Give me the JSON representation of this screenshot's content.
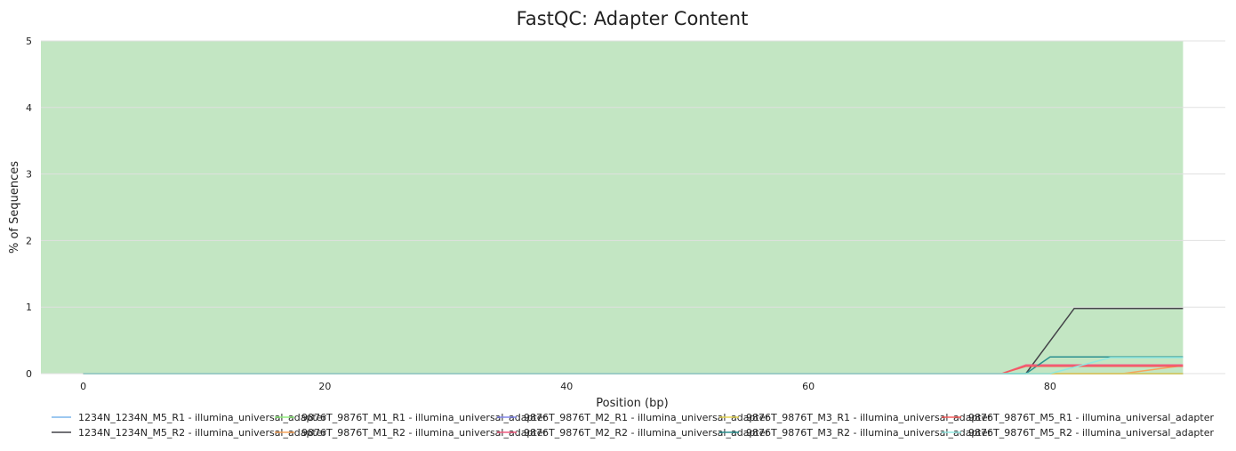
{
  "chart_data": {
    "type": "line",
    "title": "FastQC: Adapter Content",
    "xlabel": "Position (bp)",
    "ylabel": "% of Sequences",
    "xlim": [
      -3.5,
      94.5
    ],
    "ylim": [
      0,
      5
    ],
    "x_ticks": [
      0,
      20,
      40,
      60,
      80
    ],
    "y_ticks": [
      0,
      1,
      2,
      3,
      4,
      5
    ],
    "pass_band": {
      "color": "#c3e6c3",
      "y_range": [
        0,
        5
      ],
      "x_range": [
        -3.5,
        91
      ]
    },
    "grid": true,
    "legend_position": "bottom",
    "series": [
      {
        "name": "1234N_1234N_M5_R1 - illumina_universal_adapter",
        "color": "#7cb5ec",
        "x": [
          0,
          91
        ],
        "y": [
          0,
          0
        ]
      },
      {
        "name": "1234N_1234N_M5_R2 - illumina_universal_adapter",
        "color": "#434348",
        "x": [
          0,
          78,
          82,
          91
        ],
        "y": [
          0,
          0,
          0.98,
          0.98
        ]
      },
      {
        "name": "9876T_9876T_M1_R1 - illumina_universal_adapter",
        "color": "#90ed7d",
        "x": [
          0,
          91
        ],
        "y": [
          0,
          0
        ]
      },
      {
        "name": "9876T_9876T_M1_R2 - illumina_universal_adapter",
        "color": "#f7a35c",
        "x": [
          0,
          86,
          91
        ],
        "y": [
          0,
          0,
          0.12
        ]
      },
      {
        "name": "9876T_9876T_M2_R1 - illumina_universal_adapter",
        "color": "#8085e9",
        "x": [
          0,
          91
        ],
        "y": [
          0,
          0
        ]
      },
      {
        "name": "9876T_9876T_M2_R2 - illumina_universal_adapter",
        "color": "#f15c80",
        "x": [
          0,
          76,
          78,
          91
        ],
        "y": [
          0,
          0,
          0.13,
          0.13
        ]
      },
      {
        "name": "9876T_9876T_M3_R1 - illumina_universal_adapter",
        "color": "#e4d354",
        "x": [
          0,
          91
        ],
        "y": [
          0,
          0
        ]
      },
      {
        "name": "9876T_9876T_M3_R2 - illumina_universal_adapter",
        "color": "#2b908f",
        "x": [
          0,
          78,
          80,
          91
        ],
        "y": [
          0,
          0,
          0.25,
          0.25
        ]
      },
      {
        "name": "9876T_9876T_M5_R1 - illumina_universal_adapter",
        "color": "#f45b5b",
        "x": [
          0,
          76,
          78,
          91
        ],
        "y": [
          0,
          0,
          0.11,
          0.11
        ]
      },
      {
        "name": "9876T_9876T_M5_R2 - illumina_universal_adapter",
        "color": "#91e8e1",
        "x": [
          0,
          80,
          85,
          91
        ],
        "y": [
          0,
          0,
          0.24,
          0.24
        ]
      }
    ]
  }
}
